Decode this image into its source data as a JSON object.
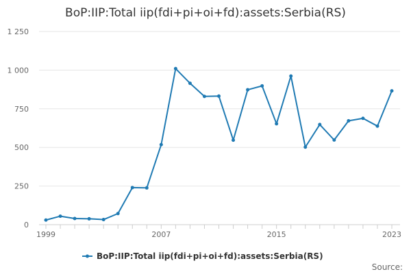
{
  "chart_data": {
    "type": "line",
    "title": "BoP:IIP:Total iip(fdi+pi+oi+fd):assets:Serbia(RS)",
    "xlabel": "",
    "ylabel": "",
    "x": [
      1999,
      2000,
      2001,
      2002,
      2003,
      2004,
      2005,
      2006,
      2007,
      2008,
      2009,
      2010,
      2011,
      2012,
      2013,
      2014,
      2015,
      2016,
      2017,
      2018,
      2019,
      2020,
      2021,
      2022,
      2023
    ],
    "series": [
      {
        "name": "BoP:IIP:Total iip(fdi+pi+oi+fd):assets:Serbia(RS)",
        "values": [
          30,
          55,
          40,
          38,
          33,
          72,
          240,
          238,
          518,
          1010,
          915,
          830,
          832,
          547,
          873,
          898,
          653,
          962,
          502,
          648,
          548,
          672,
          688,
          638,
          866
        ],
        "color": "#1f7ab3"
      }
    ],
    "ylim": [
      0,
      1250
    ],
    "yticks": [
      0,
      250,
      500,
      750,
      1000,
      1250
    ],
    "ytick_labels": [
      "0",
      "250",
      "500",
      "750",
      "1 000",
      "1 250"
    ],
    "xlim": [
      1999,
      2023
    ],
    "xticks_labeled": [
      1999,
      2007,
      2015,
      2023
    ],
    "grid": true,
    "legend_position": "bottom-center"
  },
  "credit": {
    "label": "Source:"
  }
}
